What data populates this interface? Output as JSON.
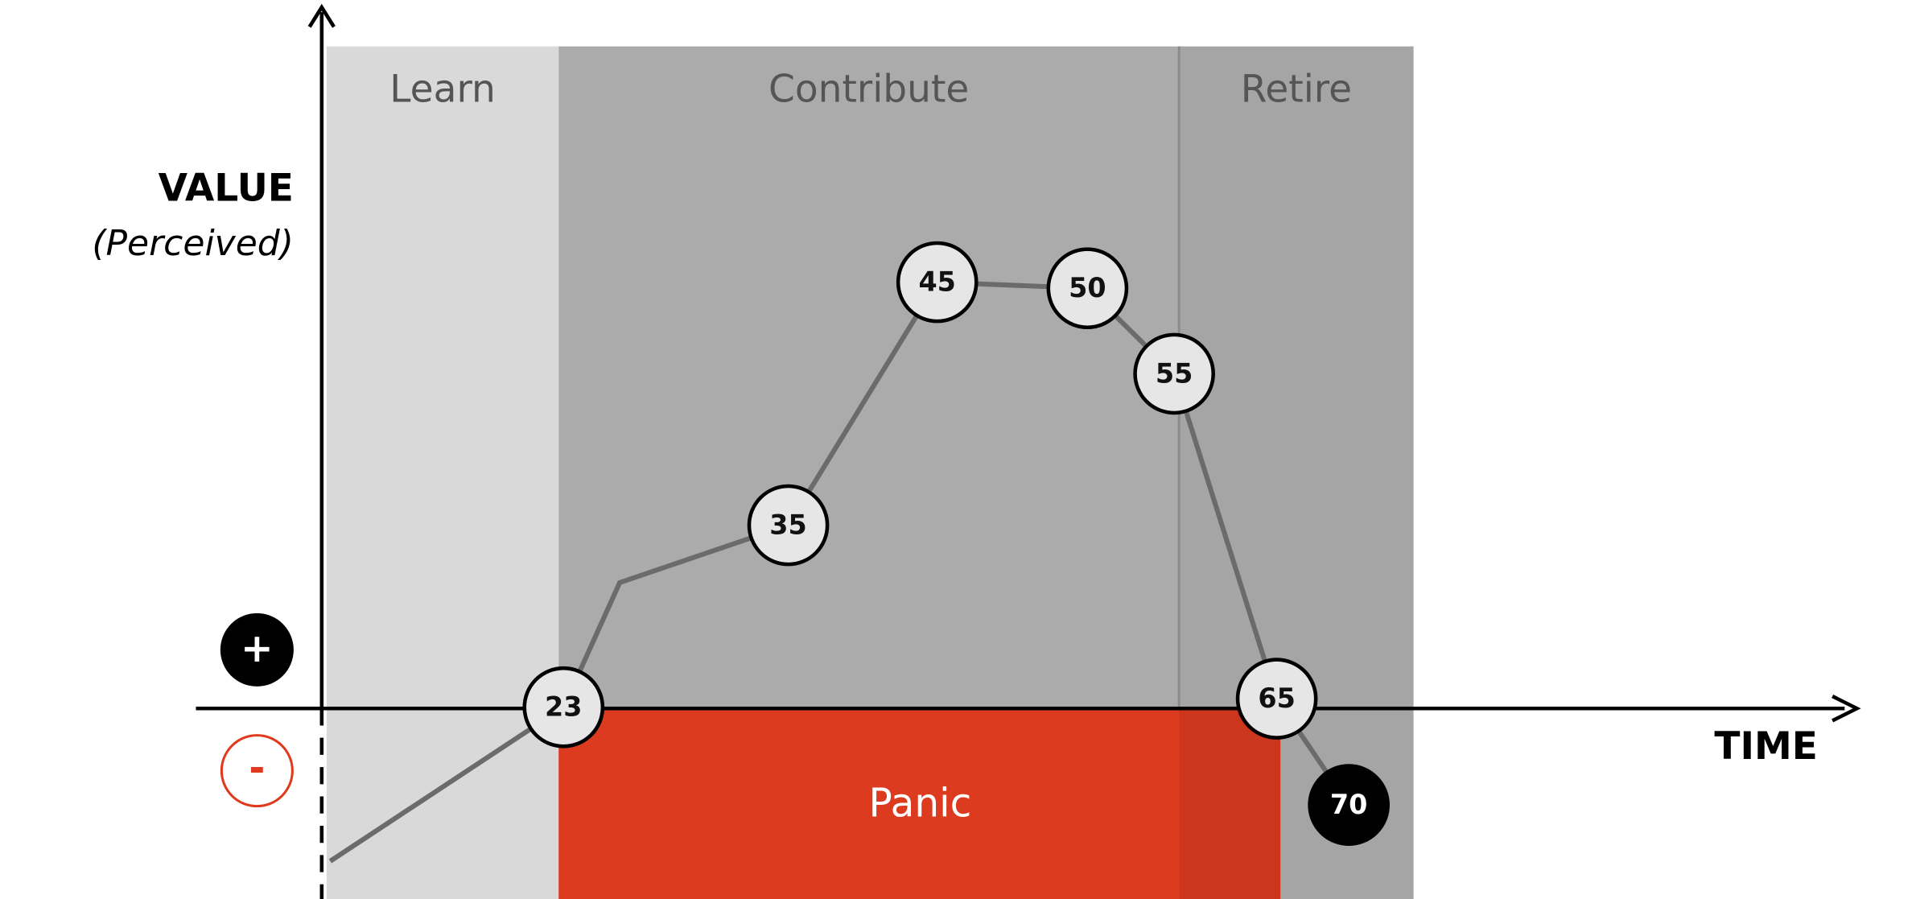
{
  "y_axis": {
    "label": "VALUE",
    "sublabel": "(Perceived)"
  },
  "x_axis": {
    "label": "TIME"
  },
  "signs": {
    "positive": "+",
    "negative": "-"
  },
  "phases": [
    {
      "label": "Learn"
    },
    {
      "label": "Contribute"
    },
    {
      "label": "Retire"
    }
  ],
  "zone": {
    "label": "Panic"
  },
  "nodes": [
    {
      "label": "23"
    },
    {
      "label": "35"
    },
    {
      "label": "45"
    },
    {
      "label": "50"
    },
    {
      "label": "55"
    },
    {
      "label": "65"
    },
    {
      "label": "70"
    }
  ]
}
